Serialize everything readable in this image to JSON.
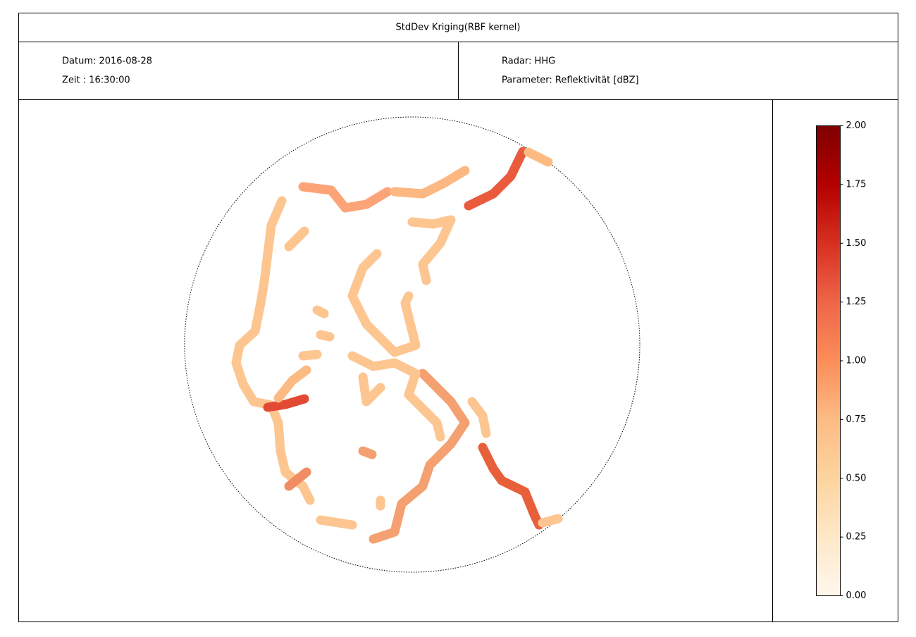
{
  "header": {
    "title": "StdDev Kriging(RBF kernel)"
  },
  "info": {
    "date": "Datum: 2016-08-28",
    "time": "Zeit : 16:30:00",
    "radar": "Radar: HHG",
    "parameter": "Parameter: Reflektivität [dBZ]"
  },
  "chart_data": {
    "type": "colorbar",
    "colormap": "OrRd",
    "ylim": [
      0,
      2
    ],
    "yticks": [
      {
        "value": 0,
        "label": "0.00"
      },
      {
        "value": 0.25,
        "label": "0.25"
      },
      {
        "value": 0.5,
        "label": "0.50"
      },
      {
        "value": 0.75,
        "label": "0.75"
      },
      {
        "value": 1,
        "label": "1.00"
      },
      {
        "value": 1.25,
        "label": "1.25"
      },
      {
        "value": 1.5,
        "label": "1.50"
      },
      {
        "value": 1.75,
        "label": "1.75"
      },
      {
        "value": 2,
        "label": "2.00"
      }
    ]
  }
}
